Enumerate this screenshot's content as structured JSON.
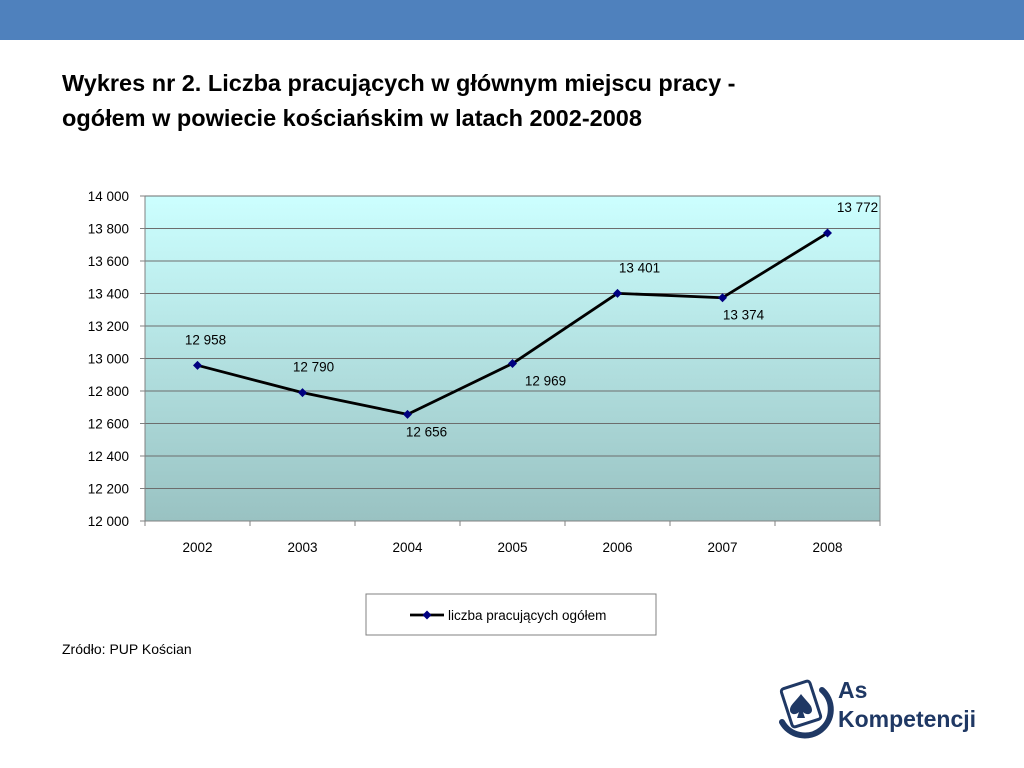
{
  "slide": {
    "title_line1": "Wykres nr 2. Liczba pracujących w głównym miejscu pracy -",
    "title_line2": "ogółem w powiecie kościańskim w latach 2002-2008",
    "source": "Zródło: PUP Kościan",
    "header_color": "#4f81bd"
  },
  "logo": {
    "line1": "As",
    "line2": "Kompetencji",
    "color": "#1f3864",
    "icon": "spade-card-icon"
  },
  "chart_data": {
    "type": "line",
    "categories": [
      "2002",
      "2003",
      "2004",
      "2005",
      "2006",
      "2007",
      "2008"
    ],
    "series": [
      {
        "name": "liczba pracujących ogółem",
        "values": [
          12958,
          12790,
          12656,
          12969,
          13401,
          13374,
          13772
        ],
        "labels": [
          "12 958",
          "12 790",
          "12 656",
          "12 969",
          "13 401",
          "13 374",
          "13 772"
        ],
        "line_color": "#000000",
        "marker_color": "#000080"
      }
    ],
    "ylim": [
      12000,
      14000
    ],
    "yticks": [
      12000,
      12200,
      12400,
      12600,
      12800,
      13000,
      13200,
      13400,
      13600,
      13800,
      14000
    ],
    "ytick_labels": [
      "12 000",
      "12 200",
      "12 400",
      "12 600",
      "12 800",
      "13 000",
      "13 200",
      "13 400",
      "13 600",
      "13 800",
      "14 000"
    ],
    "grid": true,
    "legend": "bottom",
    "plot_background": [
      "#ccffff",
      "#99c2c2"
    ]
  }
}
